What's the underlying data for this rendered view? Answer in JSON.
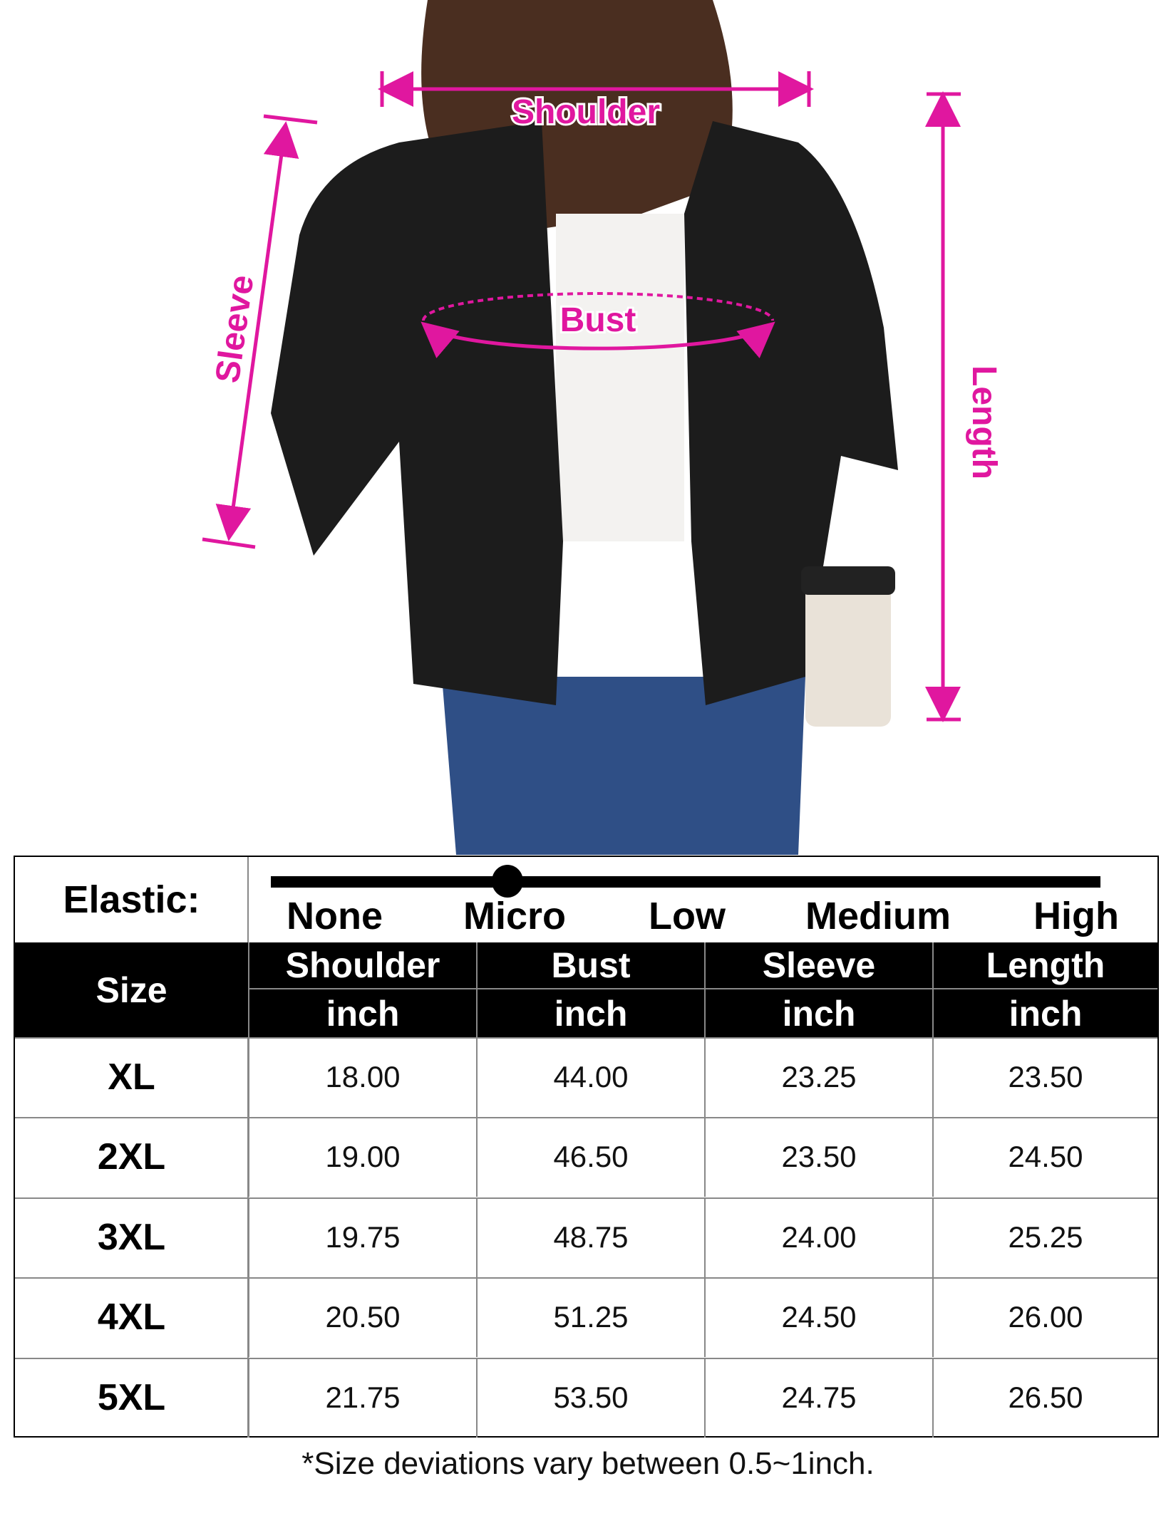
{
  "measure_labels": {
    "shoulder": "Shoulder",
    "bust": "Bust",
    "sleeve": "Sleeve",
    "length": "Length"
  },
  "accent_color": "#e0179f",
  "elastic": {
    "label": "Elastic:",
    "levels": [
      "None",
      "Micro",
      "Low",
      "Medium",
      "High"
    ],
    "selected": "Micro"
  },
  "table": {
    "size_header": "Size",
    "columns": [
      {
        "name": "Shoulder",
        "unit": "inch"
      },
      {
        "name": "Bust",
        "unit": "inch"
      },
      {
        "name": "Sleeve",
        "unit": "inch"
      },
      {
        "name": "Length",
        "unit": "inch"
      }
    ],
    "rows": [
      {
        "size": "XL",
        "values": [
          "18.00",
          "44.00",
          "23.25",
          "23.50"
        ]
      },
      {
        "size": "2XL",
        "values": [
          "19.00",
          "46.50",
          "23.50",
          "24.50"
        ]
      },
      {
        "size": "3XL",
        "values": [
          "19.75",
          "48.75",
          "24.00",
          "25.25"
        ]
      },
      {
        "size": "4XL",
        "values": [
          "20.50",
          "51.25",
          "24.50",
          "26.00"
        ]
      },
      {
        "size": "5XL",
        "values": [
          "21.75",
          "53.50",
          "24.75",
          "26.50"
        ]
      }
    ]
  },
  "footnote": "*Size deviations vary between 0.5~1inch."
}
